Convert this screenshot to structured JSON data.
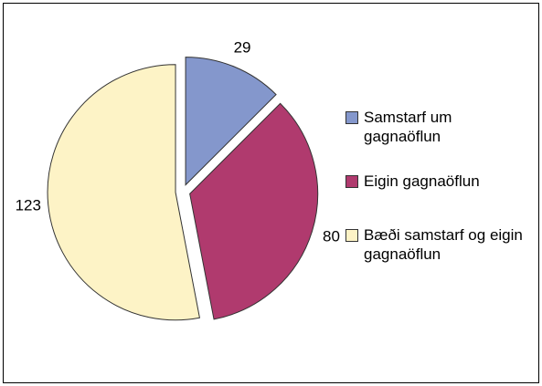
{
  "chart_data": {
    "type": "pie",
    "categories": [
      "Samstarf um gagnaöflun",
      "Eigin gagnaöflun",
      "Bæði samstarf og eigin gagnaöflun"
    ],
    "values": [
      29,
      80,
      123
    ],
    "colors": [
      "#8497cc",
      "#b03a6e",
      "#fdf3c6"
    ],
    "legend": "right"
  }
}
